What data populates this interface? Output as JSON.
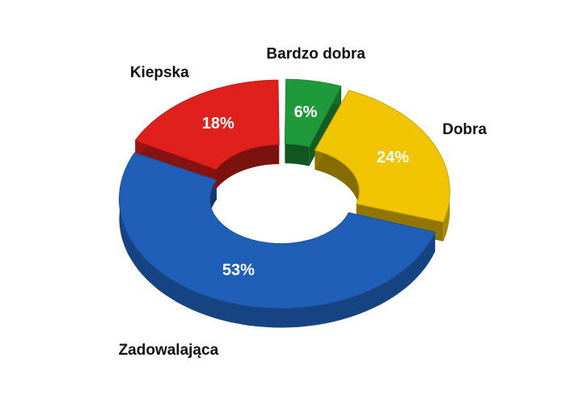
{
  "chart_data": {
    "type": "donut",
    "categories": [
      "Bardzo dobra",
      "Dobra",
      "Zadowalająca",
      "Kiepska"
    ],
    "values": [
      6,
      24,
      53,
      18
    ],
    "value_labels": [
      "6%",
      "24%",
      "53%",
      "18%"
    ],
    "colors": [
      "#1f9a3a",
      "#f0c400",
      "#1f5fb8",
      "#e0201c"
    ]
  }
}
